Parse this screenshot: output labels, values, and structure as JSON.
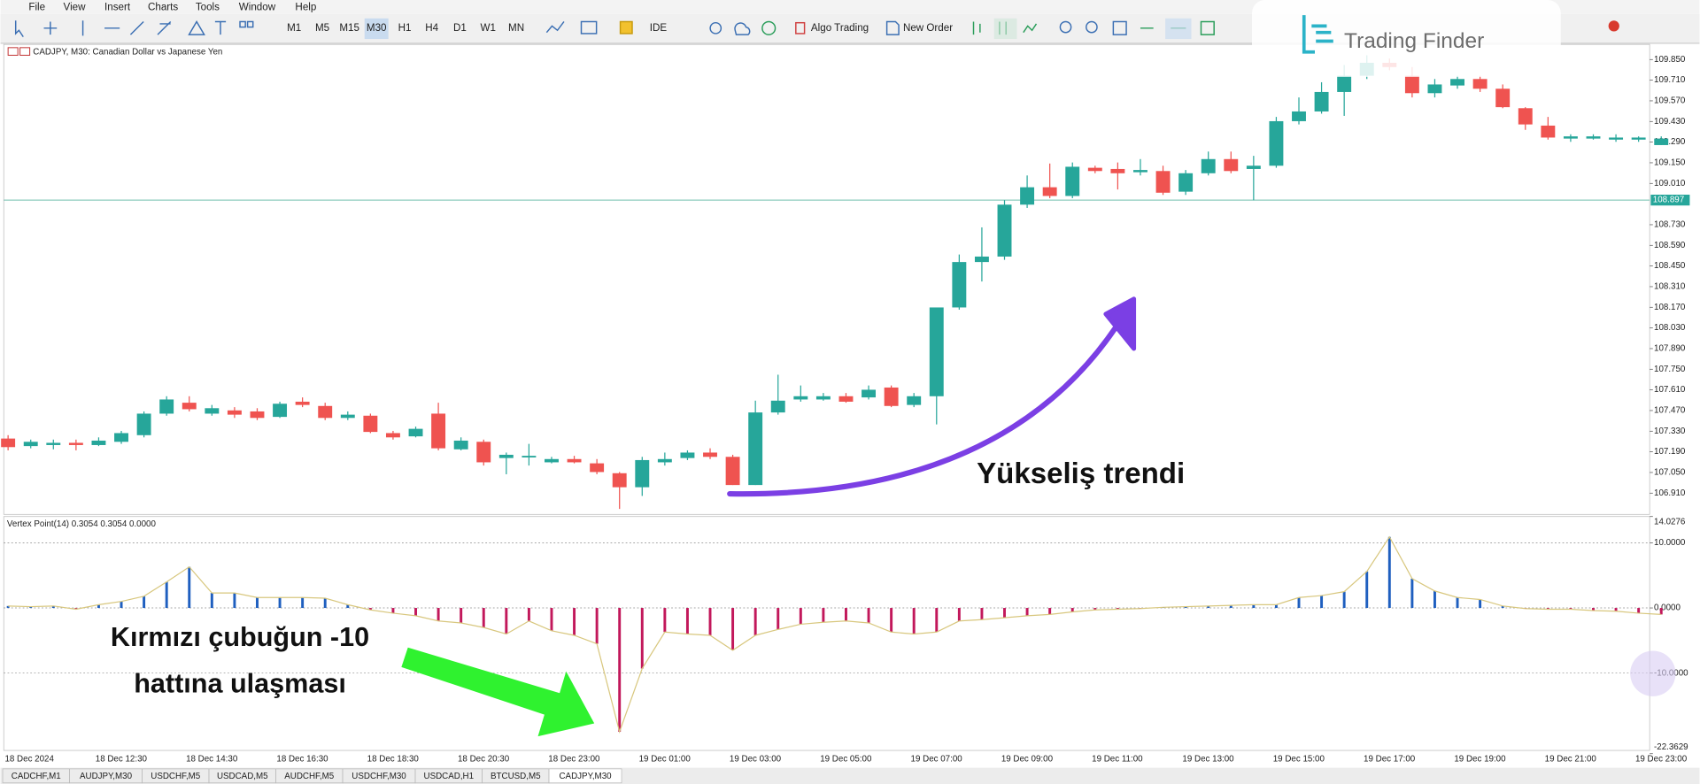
{
  "menu": [
    "File",
    "View",
    "Insert",
    "Charts",
    "Tools",
    "Window",
    "Help"
  ],
  "toolbar": {
    "timeframes": [
      "M1",
      "M5",
      "M15",
      "M30",
      "H1",
      "H4",
      "D1",
      "W1",
      "MN"
    ],
    "active_timeframe": "M30",
    "ide": "IDE",
    "algo_trading": "Algo Trading",
    "new_order": "New Order"
  },
  "watermark": "Trading Finder",
  "chart_data": {
    "type": "candlestick",
    "header": "CADJPY, M30:  Canadian Dollar vs Japanese Yen",
    "up_color": "#26a69a",
    "down_color": "#ef5350",
    "ylim": [
      106.766,
      109.96
    ],
    "yticks": [
      {
        "value": 109.85,
        "label": "109.850"
      },
      {
        "value": 109.71,
        "label": "109.710"
      },
      {
        "value": 109.57,
        "label": "109.570"
      },
      {
        "value": 109.43,
        "label": "109.430"
      },
      {
        "value": 109.29,
        "label": "109.290"
      },
      {
        "value": 109.15,
        "label": "109.150"
      },
      {
        "value": 109.01,
        "label": "109.010"
      },
      {
        "value": 108.73,
        "label": "108.730"
      },
      {
        "value": 108.59,
        "label": "108.590"
      },
      {
        "value": 108.45,
        "label": "108.450"
      },
      {
        "value": 108.31,
        "label": "108.310"
      },
      {
        "value": 108.17,
        "label": "108.170"
      },
      {
        "value": 108.03,
        "label": "108.030"
      },
      {
        "value": 107.89,
        "label": "107.890"
      },
      {
        "value": 107.75,
        "label": "107.750"
      },
      {
        "value": 107.61,
        "label": "107.610"
      },
      {
        "value": 107.47,
        "label": "107.470"
      },
      {
        "value": 107.33,
        "label": "107.330"
      },
      {
        "value": 107.19,
        "label": "107.190"
      },
      {
        "value": 107.05,
        "label": "107.050"
      },
      {
        "value": 106.91,
        "label": "106.910"
      }
    ],
    "current_price": 108.897,
    "time_labels": [
      "18 Dec 2024",
      "18 Dec 12:30",
      "18 Dec 14:30",
      "18 Dec 16:30",
      "18 Dec 18:30",
      "18 Dec 20:30",
      "18 Dec 23:00",
      "19 Dec 01:00",
      "19 Dec 03:00",
      "19 Dec 05:00",
      "19 Dec 07:00",
      "19 Dec 09:00",
      "19 Dec 11:00",
      "19 Dec 13:00",
      "19 Dec 15:00",
      "19 Dec 17:00",
      "19 Dec 19:00",
      "19 Dec 21:00",
      "19 Dec 23:00"
    ],
    "open": [
      107.28,
      107.229,
      107.236,
      107.251,
      107.236,
      107.258,
      107.303,
      107.449,
      107.523,
      107.449,
      107.471,
      107.464,
      107.427,
      107.53,
      107.501,
      107.42,
      107.435,
      107.317,
      107.295,
      107.449,
      107.207,
      107.258,
      107.148,
      107.156,
      107.119,
      107.141,
      107.112,
      107.045,
      106.95,
      107.119,
      107.148,
      107.185,
      107.156,
      106.965,
      107.457,
      107.545,
      107.545,
      107.567,
      107.559,
      107.626,
      107.508,
      107.567,
      108.169,
      108.477,
      108.514,
      108.866,
      108.984,
      108.925,
      109.116,
      109.108,
      109.086,
      109.094,
      108.954,
      109.079,
      109.175,
      109.108,
      109.13,
      109.432,
      109.498,
      109.63,
      109.74,
      109.828,
      109.74,
      109.622,
      109.674,
      109.718,
      109.652,
      109.52,
      109.402,
      109.314,
      109.314,
      109.307,
      109.307,
      109.27
    ],
    "high": [
      107.303,
      107.273,
      107.273,
      107.273,
      107.288,
      107.332,
      107.464,
      107.567,
      107.567,
      107.508,
      107.493,
      107.486,
      107.53,
      107.559,
      107.523,
      107.464,
      107.449,
      107.332,
      107.361,
      107.523,
      107.288,
      107.273,
      107.185,
      107.244,
      107.156,
      107.163,
      107.141,
      107.053,
      107.156,
      107.185,
      107.2,
      107.214,
      107.17,
      107.537,
      107.713,
      107.64,
      107.589,
      107.589,
      107.64,
      107.64,
      107.589,
      108.169,
      108.528,
      108.712,
      108.896,
      109.064,
      109.145,
      109.152,
      109.13,
      109.152,
      109.175,
      109.13,
      109.101,
      109.226,
      109.226,
      109.197,
      109.461,
      109.593,
      109.696,
      109.813,
      109.879,
      109.857,
      109.799,
      109.718,
      109.74,
      109.74,
      109.681,
      109.527,
      109.461,
      109.343,
      109.343,
      109.343,
      109.329,
      109.329
    ],
    "low": [
      107.2,
      107.214,
      107.207,
      107.2,
      107.229,
      107.244,
      107.288,
      107.435,
      107.464,
      107.435,
      107.42,
      107.405,
      107.42,
      107.493,
      107.405,
      107.405,
      107.317,
      107.273,
      107.288,
      107.2,
      107.2,
      107.097,
      107.038,
      107.097,
      107.112,
      107.112,
      107.038,
      106.803,
      106.891,
      107.097,
      107.134,
      107.141,
      106.965,
      106.965,
      107.442,
      107.53,
      107.537,
      107.523,
      107.545,
      107.493,
      107.493,
      107.376,
      108.154,
      108.345,
      108.492,
      108.844,
      108.91,
      108.91,
      109.079,
      108.969,
      109.064,
      108.932,
      108.932,
      109.064,
      109.079,
      108.896,
      109.116,
      109.41,
      109.483,
      109.468,
      109.718,
      109.777,
      109.593,
      109.593,
      109.652,
      109.63,
      109.52,
      109.373,
      109.307,
      109.292,
      109.307,
      109.292,
      109.292,
      109.27
    ],
    "close": [
      107.222,
      107.258,
      107.251,
      107.236,
      107.266,
      107.317,
      107.449,
      107.545,
      107.479,
      107.486,
      107.442,
      107.42,
      107.516,
      107.508,
      107.42,
      107.442,
      107.325,
      107.288,
      107.346,
      107.214,
      107.266,
      107.119,
      107.17,
      107.163,
      107.141,
      107.119,
      107.053,
      106.95,
      107.134,
      107.141,
      107.185,
      107.156,
      106.965,
      107.457,
      107.537,
      107.567,
      107.567,
      107.53,
      107.611,
      107.501,
      107.567,
      108.169,
      108.477,
      108.514,
      108.866,
      108.984,
      108.925,
      109.123,
      109.094,
      109.079,
      109.101,
      108.947,
      109.079,
      109.175,
      109.094,
      109.13,
      109.432,
      109.498,
      109.63,
      109.74,
      109.828,
      109.799,
      109.622,
      109.681,
      109.718,
      109.652,
      109.527,
      109.41,
      109.321,
      109.329,
      109.329,
      109.321,
      109.321,
      109.314
    ],
    "indicator": {
      "title": "Vertex Point(14) 0.3054 0.3054 0.0000",
      "ylim": [
        -22.3629,
        14.0276
      ],
      "yticks": [
        {
          "value": 14.0276,
          "label": "14.0276"
        },
        {
          "value": 10,
          "label": "10.0000"
        },
        {
          "value": 0,
          "label": "0.0000"
        },
        {
          "value": -10,
          "label": "-10.0000"
        },
        {
          "value": -22.3629,
          "label": "-22.3629"
        }
      ],
      "levels": [
        10,
        0,
        -10
      ],
      "positive_color": "#1f5fbf",
      "negative_color": "#c2185b",
      "line_color": "#d8c77e",
      "values": [
        0.3,
        0.2,
        0.3,
        -0.2,
        0.5,
        1.0,
        1.8,
        4.0,
        6.3,
        2.3,
        2.3,
        1.6,
        1.6,
        1.6,
        1.5,
        0.5,
        -0.3,
        -0.8,
        -1.2,
        -2.0,
        -2.3,
        -3.0,
        -4.0,
        -2.0,
        -3.5,
        -4.2,
        -5.5,
        -19.0,
        -9.3,
        -3.7,
        -4.0,
        -4.2,
        -6.5,
        -4.2,
        -3.3,
        -2.5,
        -2.2,
        -2.0,
        -2.3,
        -3.7,
        -4.0,
        -3.7,
        -2.0,
        -1.8,
        -1.5,
        -1.2,
        -1.0,
        -0.6,
        -0.3,
        -0.2,
        -0.1,
        0.1,
        0.2,
        0.3,
        0.4,
        0.5,
        0.5,
        1.6,
        1.9,
        2.5,
        5.6,
        10.9,
        4.5,
        2.6,
        1.6,
        1.3,
        0.3,
        -0.1,
        -0.2,
        -0.2,
        -0.4,
        -0.5,
        -0.8,
        -1.0
      ]
    }
  },
  "annotations": {
    "trend": "Yükseliş trendi",
    "signal_line1": "Kırmızı çubuğun -10",
    "signal_line2": "hattına ulaşması"
  },
  "tabs": [
    "CADCHF,M1",
    "AUDJPY,M30",
    "USDCHF,M5",
    "USDCAD,M5",
    "AUDCHF,M5",
    "USDCHF,M30",
    "USDCAD,H1",
    "BTCUSD,M5",
    "CADJPY,M30"
  ],
  "active_tab": "CADJPY,M30"
}
